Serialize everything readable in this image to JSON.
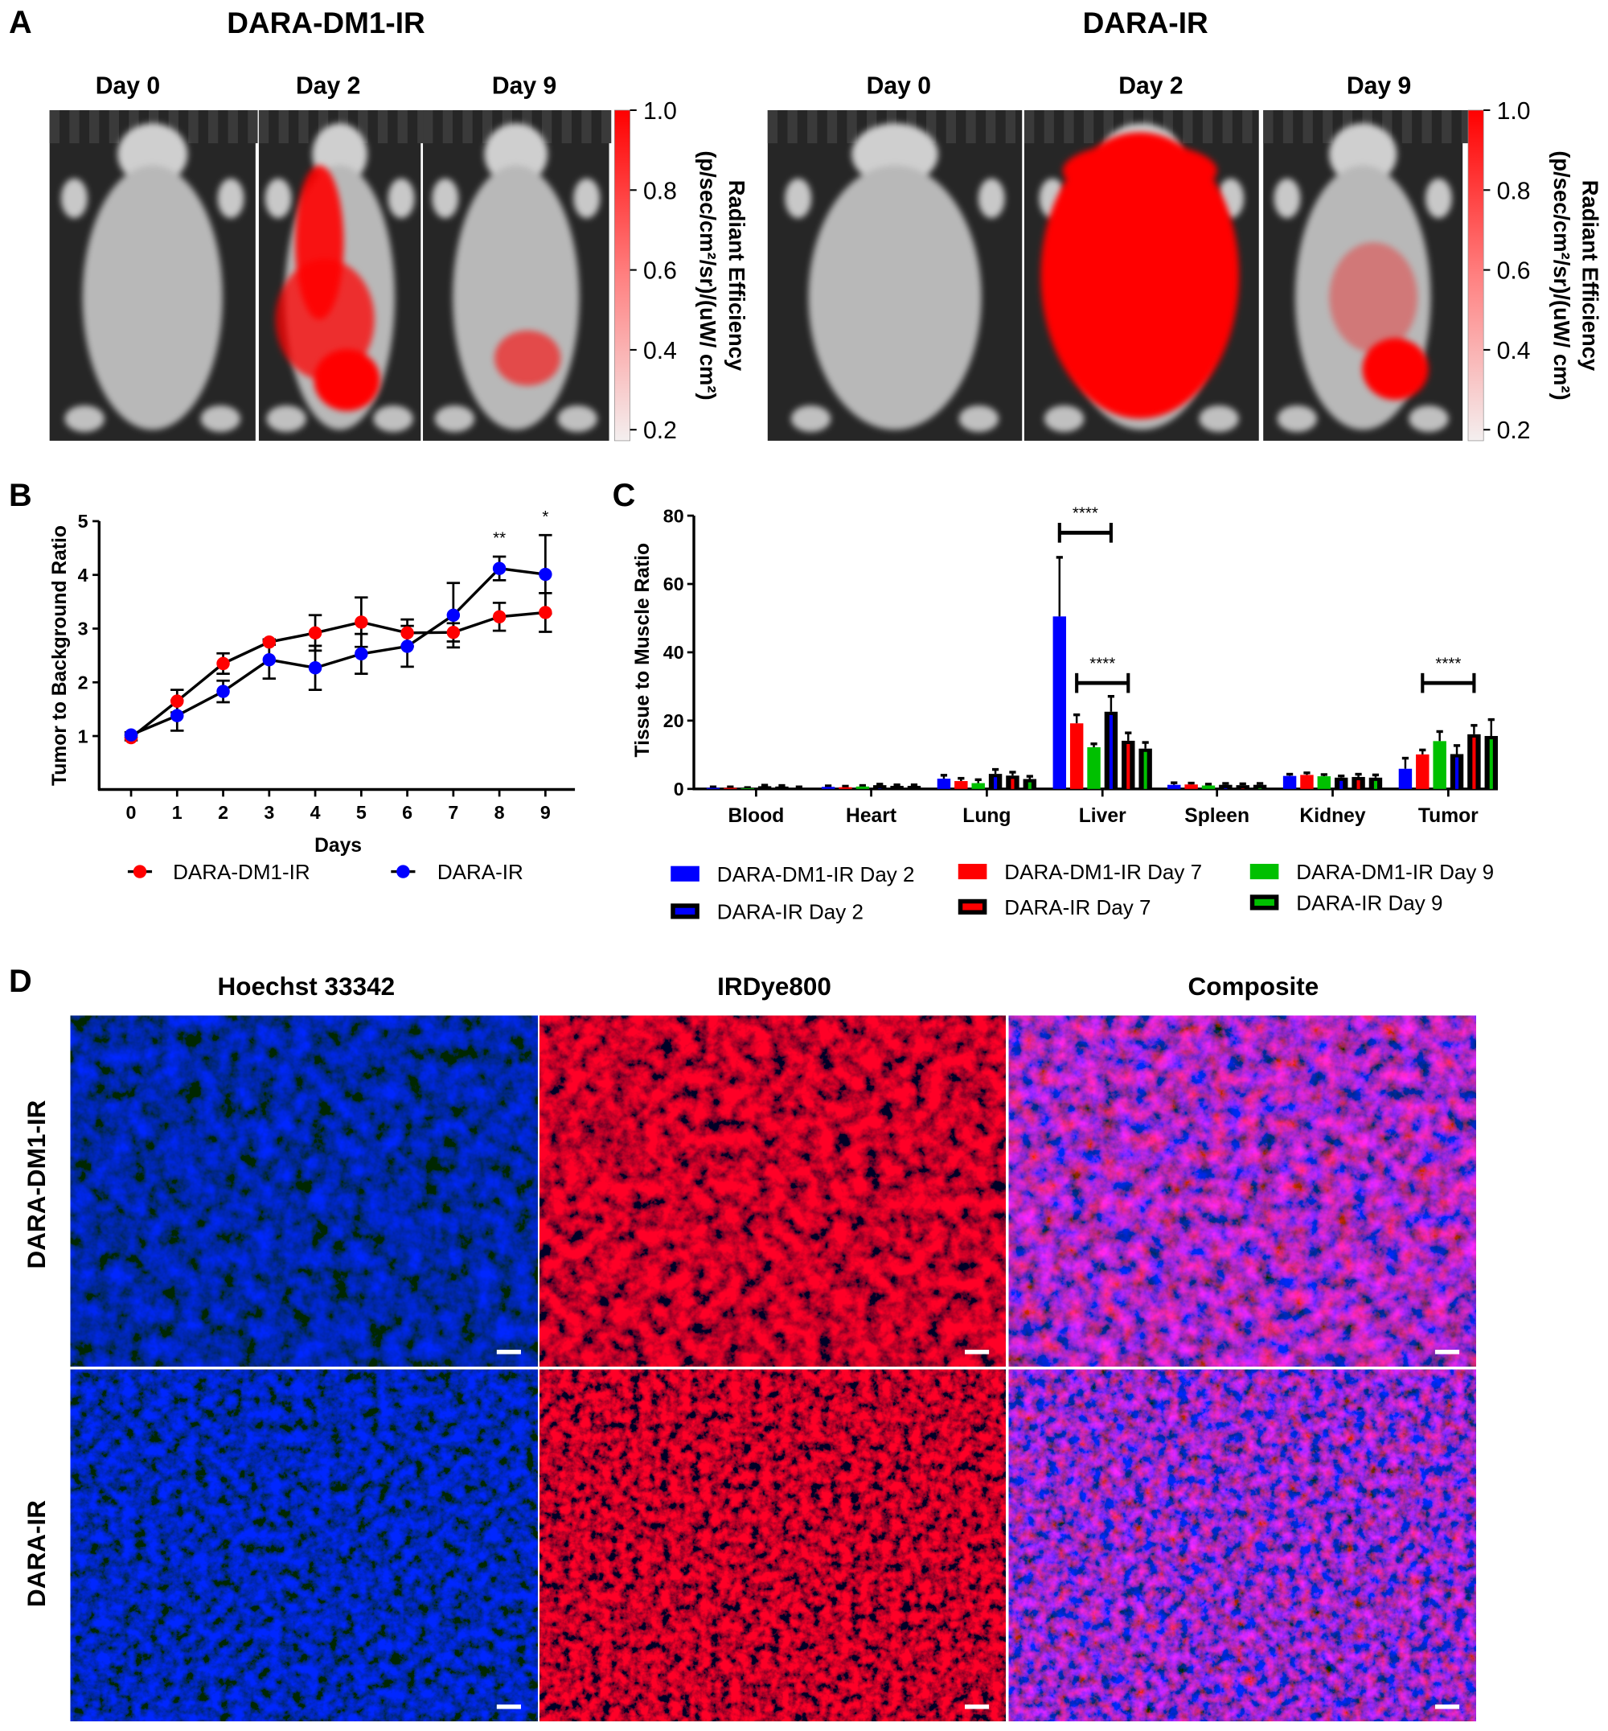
{
  "panel_labels": {
    "a": "A",
    "b": "B",
    "c": "C",
    "d": "D"
  },
  "panel_a": {
    "groups": [
      {
        "title": "DARA-DM1-IR",
        "days": [
          "Day 0",
          "Day 2",
          "Day 9"
        ]
      },
      {
        "title": "DARA-IR",
        "days": [
          "Day 0",
          "Day 2",
          "Day 9"
        ]
      }
    ],
    "colorbar": {
      "ticks": [
        "1.0",
        "0.8",
        "0.6",
        "0.4",
        "0.2"
      ],
      "label": "Radiant Efficiency",
      "unit": "(p/sec/cm²/sr)/(uW/ cm²)",
      "color_high": "#ff0000",
      "color_low": "#ffffff"
    }
  },
  "chart_data": [
    {
      "type": "line",
      "xlabel": "Days",
      "ylabel": "Tumor to Background Ratio",
      "x": [
        0,
        1,
        2,
        3,
        4,
        5,
        6,
        7,
        8,
        9
      ],
      "xticks": [
        "0",
        "1",
        "2",
        "3",
        "4",
        "5",
        "6",
        "7",
        "8",
        "9"
      ],
      "ylim": [
        0,
        5
      ],
      "yticks": [
        "1",
        "2",
        "3",
        "4",
        "5"
      ],
      "grid": false,
      "legend": "bottom",
      "series": [
        {
          "name": "DARA-DM1-IR",
          "color": "#ff0000",
          "values": [
            0.97,
            1.65,
            2.35,
            2.75,
            2.92,
            3.12,
            2.92,
            2.93,
            3.22,
            3.3
          ],
          "error": [
            0.05,
            0.21,
            0.19,
            0.05,
            0.33,
            0.46,
            0.25,
            0.17,
            0.26,
            0.36
          ]
        },
        {
          "name": "DARA-IR",
          "color": "#0000ff",
          "values": [
            1.02,
            1.38,
            1.83,
            2.42,
            2.27,
            2.53,
            2.67,
            3.25,
            4.12,
            4.01
          ],
          "error": [
            0.05,
            0.28,
            0.2,
            0.35,
            0.41,
            0.37,
            0.38,
            0.6,
            0.22,
            0.73
          ]
        }
      ],
      "annotations": [
        {
          "x": 8,
          "text": "**"
        },
        {
          "x": 9,
          "text": "*"
        }
      ]
    },
    {
      "type": "bar",
      "ylabel": "Tissue to Muscle Ratio",
      "categories": [
        "Blood",
        "Heart",
        "Lung",
        "Liver",
        "Spleen",
        "Kidney",
        "Tumor"
      ],
      "ylim": [
        0,
        80
      ],
      "yticks": [
        "0",
        "20",
        "40",
        "60",
        "80"
      ],
      "grid": false,
      "legend": "bottom",
      "series": [
        {
          "name": "DARA-DM1-IR Day 2",
          "color": "#0000ff",
          "outlined": false,
          "values": [
            0.3,
            0.6,
            3.0,
            50.5,
            1.2,
            3.8,
            5.9
          ],
          "error": [
            0.3,
            0.3,
            1.0,
            17.3,
            0.6,
            0.5,
            3.1
          ]
        },
        {
          "name": "DARA-DM1-IR Day 7",
          "color": "#ff0000",
          "outlined": false,
          "values": [
            0.3,
            0.5,
            2.3,
            19.2,
            1.3,
            4.1,
            10.1
          ],
          "error": [
            0.3,
            0.3,
            0.8,
            2.5,
            0.4,
            0.6,
            1.3
          ]
        },
        {
          "name": "DARA-DM1-IR Day 9",
          "color": "#00c000",
          "outlined": false,
          "values": [
            0.2,
            0.7,
            1.7,
            12.2,
            1.0,
            3.7,
            14.0
          ],
          "error": [
            0.2,
            0.3,
            1.0,
            1.0,
            0.4,
            0.5,
            2.8
          ]
        },
        {
          "name": "DARA-IR Day 2",
          "color": "#0000ff",
          "outlined": true,
          "values": [
            0.8,
            1.1,
            4.4,
            22.6,
            1.2,
            3.3,
            10.2
          ],
          "error": [
            0.3,
            0.3,
            1.3,
            4.5,
            0.4,
            0.5,
            2.5
          ]
        },
        {
          "name": "DARA-IR Day 7",
          "color": "#ff0000",
          "outlined": true,
          "values": [
            0.7,
            0.9,
            3.9,
            14.1,
            1.1,
            3.5,
            16.0
          ],
          "error": [
            0.3,
            0.3,
            1.0,
            2.3,
            0.4,
            0.8,
            2.6
          ]
        },
        {
          "name": "DARA-IR Day 9",
          "color": "#00c000",
          "outlined": true,
          "values": [
            0.3,
            0.9,
            2.9,
            11.8,
            1.2,
            3.3,
            15.5
          ],
          "error": [
            0.3,
            0.3,
            0.8,
            1.8,
            0.4,
            0.8,
            4.8
          ]
        }
      ],
      "annotations": [
        {
          "category": "Liver",
          "from_series": "DARA-DM1-IR Day 2",
          "to_series": "DARA-IR Day 2",
          "text": "****"
        },
        {
          "category": "Liver",
          "from_series": "DARA-DM1-IR Day 7",
          "to_series": "DARA-IR Day 7",
          "text": "****"
        },
        {
          "category": "Tumor",
          "from_series": "DARA-DM1-IR Day 7",
          "to_series": "DARA-IR Day 7",
          "text": "****"
        }
      ]
    }
  ],
  "panel_d": {
    "columns": [
      "Hoechst 33342",
      "IRDye800",
      "Composite"
    ],
    "rows": [
      "DARA-DM1-IR",
      "DARA-IR"
    ],
    "channel_colors": {
      "hoechst": "#0000ff",
      "irdye": "#ff0000"
    }
  }
}
